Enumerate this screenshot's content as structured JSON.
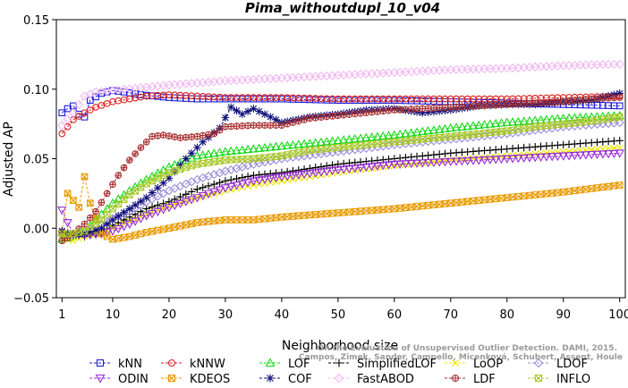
{
  "chart_data": {
    "type": "line",
    "title": "Pima_withoutdupl_10_v04",
    "xlabel": "Neighborhood size",
    "ylabel": "Adjusted AP",
    "xlim": [
      0,
      101
    ],
    "ylim": [
      -0.05,
      0.15
    ],
    "xticks": [
      1,
      10,
      20,
      30,
      40,
      50,
      60,
      70,
      80,
      90,
      100
    ],
    "yticks": [
      -0.05,
      0.0,
      0.05,
      0.1,
      0.15
    ],
    "ytick_labels": [
      "−0.05",
      "0.00",
      "0.05",
      "0.10",
      "0.15"
    ],
    "grid": false,
    "legend_position": "bottom",
    "watermark_lines": [
      "Campos, Zimek, Sander, Campello, Micenková, Schubert, Assent, Houle",
      "On the Evaluation of Unsupervised Outlier Detection. DAMI, 2015."
    ],
    "series": [
      {
        "name": "kNN",
        "color": "#1e1ed8",
        "marker": "square",
        "points": [
          [
            1,
            0.083
          ],
          [
            2,
            0.086
          ],
          [
            3,
            0.088
          ],
          [
            4,
            0.082
          ],
          [
            5,
            0.08
          ],
          [
            6,
            0.092
          ],
          [
            8,
            0.097
          ],
          [
            10,
            0.099
          ],
          [
            12,
            0.098
          ],
          [
            15,
            0.096
          ],
          [
            20,
            0.094
          ],
          [
            25,
            0.093
          ],
          [
            30,
            0.093
          ],
          [
            40,
            0.093
          ],
          [
            50,
            0.092
          ],
          [
            60,
            0.092
          ],
          [
            70,
            0.091
          ],
          [
            80,
            0.09
          ],
          [
            90,
            0.089
          ],
          [
            100,
            0.088
          ]
        ]
      },
      {
        "name": "kNNW",
        "color": "#d82020",
        "marker": "circle",
        "points": [
          [
            1,
            0.068
          ],
          [
            2,
            0.073
          ],
          [
            3,
            0.078
          ],
          [
            5,
            0.083
          ],
          [
            7,
            0.087
          ],
          [
            10,
            0.091
          ],
          [
            13,
            0.093
          ],
          [
            16,
            0.095
          ],
          [
            20,
            0.096
          ],
          [
            25,
            0.095
          ],
          [
            30,
            0.094
          ],
          [
            40,
            0.094
          ],
          [
            50,
            0.093
          ],
          [
            60,
            0.093
          ],
          [
            70,
            0.093
          ],
          [
            80,
            0.093
          ],
          [
            90,
            0.094
          ],
          [
            100,
            0.095
          ]
        ]
      },
      {
        "name": "LOF",
        "color": "#18d818",
        "marker": "triangle-up",
        "points": [
          [
            1,
            -0.008
          ],
          [
            3,
            -0.006
          ],
          [
            5,
            -0.002
          ],
          [
            7,
            0.006
          ],
          [
            10,
            0.018
          ],
          [
            13,
            0.027
          ],
          [
            16,
            0.035
          ],
          [
            20,
            0.044
          ],
          [
            25,
            0.052
          ],
          [
            30,
            0.055
          ],
          [
            35,
            0.057
          ],
          [
            40,
            0.059
          ],
          [
            50,
            0.063
          ],
          [
            60,
            0.067
          ],
          [
            70,
            0.072
          ],
          [
            80,
            0.076
          ],
          [
            90,
            0.079
          ],
          [
            100,
            0.081
          ]
        ]
      },
      {
        "name": "SimplifiedLOF",
        "color": "#000000",
        "marker": "plus",
        "points": [
          [
            1,
            -0.003
          ],
          [
            3,
            -0.005
          ],
          [
            5,
            -0.006
          ],
          [
            8,
            -0.003
          ],
          [
            10,
            0.002
          ],
          [
            13,
            0.008
          ],
          [
            16,
            0.014
          ],
          [
            20,
            0.019
          ],
          [
            25,
            0.028
          ],
          [
            30,
            0.034
          ],
          [
            35,
            0.038
          ],
          [
            40,
            0.04
          ],
          [
            50,
            0.046
          ],
          [
            60,
            0.05
          ],
          [
            70,
            0.054
          ],
          [
            80,
            0.057
          ],
          [
            90,
            0.06
          ],
          [
            100,
            0.063
          ]
        ]
      },
      {
        "name": "LoOP",
        "color": "#e8e800",
        "marker": "cross",
        "points": [
          [
            1,
            -0.008
          ],
          [
            3,
            -0.009
          ],
          [
            5,
            -0.006
          ],
          [
            8,
            -0.003
          ],
          [
            10,
            0.0
          ],
          [
            13,
            0.005
          ],
          [
            16,
            0.01
          ],
          [
            20,
            0.016
          ],
          [
            25,
            0.022
          ],
          [
            30,
            0.027
          ],
          [
            35,
            0.031
          ],
          [
            40,
            0.034
          ],
          [
            50,
            0.04
          ],
          [
            60,
            0.045
          ],
          [
            70,
            0.049
          ],
          [
            80,
            0.052
          ],
          [
            90,
            0.055
          ],
          [
            100,
            0.058
          ]
        ]
      },
      {
        "name": "LDOF",
        "color": "#9a8cd8",
        "marker": "diamond",
        "points": [
          [
            1,
            -0.005
          ],
          [
            3,
            -0.004
          ],
          [
            5,
            -0.002
          ],
          [
            8,
            0.002
          ],
          [
            10,
            0.007
          ],
          [
            13,
            0.012
          ],
          [
            16,
            0.019
          ],
          [
            20,
            0.027
          ],
          [
            25,
            0.035
          ],
          [
            30,
            0.041
          ],
          [
            35,
            0.046
          ],
          [
            40,
            0.05
          ],
          [
            50,
            0.055
          ],
          [
            60,
            0.06
          ],
          [
            70,
            0.064
          ],
          [
            80,
            0.068
          ],
          [
            90,
            0.073
          ],
          [
            100,
            0.076
          ]
        ]
      },
      {
        "name": "ODIN",
        "color": "#9a2ad8",
        "marker": "triangle-down",
        "points": [
          [
            1,
            0.013
          ],
          [
            2,
            0.004
          ],
          [
            3,
            -0.004
          ],
          [
            5,
            -0.005
          ],
          [
            8,
            -0.004
          ],
          [
            10,
            -0.002
          ],
          [
            13,
            0.003
          ],
          [
            16,
            0.009
          ],
          [
            20,
            0.015
          ],
          [
            25,
            0.022
          ],
          [
            30,
            0.029
          ],
          [
            35,
            0.034
          ],
          [
            40,
            0.037
          ],
          [
            50,
            0.042
          ],
          [
            60,
            0.046
          ],
          [
            70,
            0.048
          ],
          [
            80,
            0.05
          ],
          [
            90,
            0.052
          ],
          [
            100,
            0.054
          ]
        ]
      },
      {
        "name": "KDEOS",
        "color": "#e89a00",
        "marker": "square-x",
        "points": [
          [
            1,
            -0.003
          ],
          [
            2,
            0.025
          ],
          [
            3,
            0.02
          ],
          [
            4,
            0.015
          ],
          [
            5,
            0.037
          ],
          [
            6,
            0.018
          ],
          [
            8,
            -0.004
          ],
          [
            10,
            -0.008
          ],
          [
            13,
            -0.006
          ],
          [
            16,
            -0.003
          ],
          [
            20,
            0.0
          ],
          [
            25,
            0.004
          ],
          [
            30,
            0.006
          ],
          [
            35,
            0.006
          ],
          [
            40,
            0.008
          ],
          [
            50,
            0.011
          ],
          [
            60,
            0.014
          ],
          [
            70,
            0.018
          ],
          [
            80,
            0.022
          ],
          [
            90,
            0.026
          ],
          [
            100,
            0.031
          ]
        ]
      },
      {
        "name": "COF",
        "color": "#10107a",
        "marker": "asterisk",
        "points": [
          [
            1,
            -0.002
          ],
          [
            3,
            -0.005
          ],
          [
            5,
            -0.004
          ],
          [
            8,
            0.0
          ],
          [
            10,
            0.006
          ],
          [
            13,
            0.014
          ],
          [
            16,
            0.022
          ],
          [
            20,
            0.036
          ],
          [
            23,
            0.05
          ],
          [
            26,
            0.062
          ],
          [
            29,
            0.072
          ],
          [
            31,
            0.087
          ],
          [
            33,
            0.082
          ],
          [
            35,
            0.086
          ],
          [
            40,
            0.076
          ],
          [
            45,
            0.08
          ],
          [
            50,
            0.082
          ],
          [
            55,
            0.085
          ],
          [
            60,
            0.086
          ],
          [
            65,
            0.083
          ],
          [
            70,
            0.085
          ],
          [
            75,
            0.088
          ],
          [
            80,
            0.089
          ],
          [
            85,
            0.089
          ],
          [
            90,
            0.091
          ],
          [
            95,
            0.092
          ],
          [
            100,
            0.097
          ]
        ]
      },
      {
        "name": "FastABOD",
        "color": "#f0b8f0",
        "marker": "diamond",
        "points": [
          [
            1,
            0.074
          ],
          [
            3,
            0.083
          ],
          [
            5,
            0.095
          ],
          [
            7,
            0.098
          ],
          [
            10,
            0.099
          ],
          [
            15,
            0.101
          ],
          [
            20,
            0.103
          ],
          [
            30,
            0.106
          ],
          [
            40,
            0.108
          ],
          [
            50,
            0.11
          ],
          [
            60,
            0.112
          ],
          [
            70,
            0.114
          ],
          [
            80,
            0.115
          ],
          [
            90,
            0.117
          ],
          [
            100,
            0.118
          ]
        ]
      },
      {
        "name": "LDF",
        "color": "#a83030",
        "marker": "circle-plus",
        "points": [
          [
            1,
            -0.009
          ],
          [
            2,
            -0.007
          ],
          [
            3,
            -0.004
          ],
          [
            5,
            0.003
          ],
          [
            7,
            0.012
          ],
          [
            9,
            0.025
          ],
          [
            11,
            0.038
          ],
          [
            13,
            0.049
          ],
          [
            15,
            0.058
          ],
          [
            17,
            0.066
          ],
          [
            19,
            0.067
          ],
          [
            22,
            0.065
          ],
          [
            25,
            0.066
          ],
          [
            28,
            0.068
          ],
          [
            30,
            0.073
          ],
          [
            35,
            0.074
          ],
          [
            40,
            0.074
          ],
          [
            45,
            0.079
          ],
          [
            50,
            0.081
          ],
          [
            55,
            0.083
          ],
          [
            60,
            0.085
          ],
          [
            65,
            0.086
          ],
          [
            70,
            0.087
          ],
          [
            75,
            0.088
          ],
          [
            80,
            0.089
          ],
          [
            85,
            0.09
          ],
          [
            90,
            0.091
          ],
          [
            95,
            0.093
          ],
          [
            100,
            0.094
          ]
        ]
      },
      {
        "name": "INFLO",
        "color": "#a8c828",
        "marker": "square-x",
        "points": [
          [
            1,
            -0.004
          ],
          [
            3,
            -0.004
          ],
          [
            5,
            -0.002
          ],
          [
            8,
            0.006
          ],
          [
            10,
            0.014
          ],
          [
            13,
            0.024
          ],
          [
            16,
            0.032
          ],
          [
            20,
            0.04
          ],
          [
            25,
            0.046
          ],
          [
            30,
            0.049
          ],
          [
            35,
            0.05
          ],
          [
            40,
            0.052
          ],
          [
            45,
            0.056
          ],
          [
            50,
            0.058
          ],
          [
            55,
            0.06
          ],
          [
            60,
            0.062
          ],
          [
            65,
            0.064
          ],
          [
            70,
            0.066
          ],
          [
            75,
            0.068
          ],
          [
            80,
            0.07
          ],
          [
            85,
            0.073
          ],
          [
            90,
            0.075
          ],
          [
            95,
            0.077
          ],
          [
            100,
            0.08
          ]
        ]
      }
    ]
  }
}
